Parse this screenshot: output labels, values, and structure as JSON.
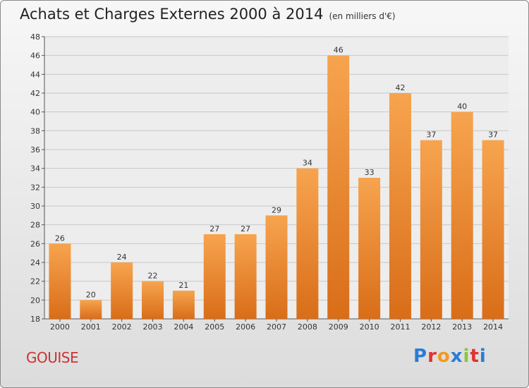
{
  "header": {
    "title": "Achats et Charges Externes 2000 à 2014",
    "unit": "(en milliers d'€)"
  },
  "footer": {
    "commune": "GOUISE",
    "logo_text": "Proxiti",
    "logo_colors": [
      "#2b7bd6",
      "#e0322e",
      "#f29a1e",
      "#2b7bd6",
      "#8bc53f",
      "#e0322e",
      "#2b7bd6"
    ]
  },
  "colors": {
    "bar_light": "#f7a44f",
    "bar_dark": "#d96d18",
    "grid": "#c8c8c8",
    "axis": "#555555"
  },
  "chart_data": {
    "type": "bar",
    "categories": [
      "2000",
      "2001",
      "2002",
      "2003",
      "2004",
      "2005",
      "2006",
      "2007",
      "2008",
      "2009",
      "2010",
      "2011",
      "2012",
      "2013",
      "2014"
    ],
    "values": [
      26,
      20,
      24,
      22,
      21,
      27,
      27,
      29,
      34,
      46,
      33,
      42,
      37,
      40,
      37
    ],
    "data_labels": [
      "26",
      "20",
      "24",
      "22",
      "21",
      "27",
      "27",
      "29",
      "34",
      "46",
      "33",
      "42",
      "37",
      "40",
      "37"
    ],
    "ylim": [
      18,
      48
    ],
    "yticks": [
      "18",
      "20",
      "22",
      "24",
      "26",
      "28",
      "30",
      "32",
      "34",
      "36",
      "38",
      "40",
      "42",
      "44",
      "46",
      "48"
    ],
    "grid": true
  }
}
